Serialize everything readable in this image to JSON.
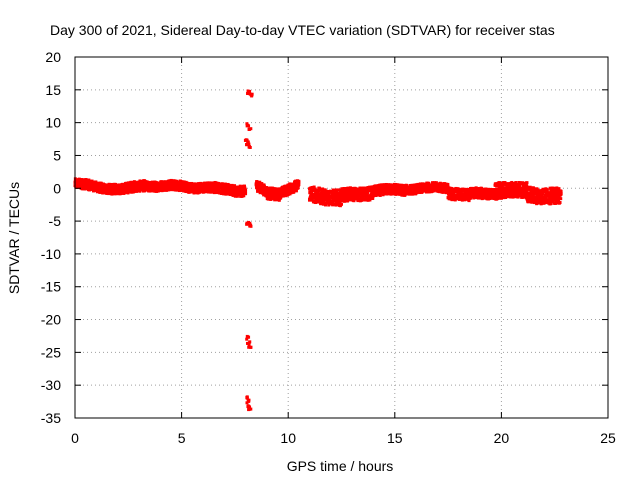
{
  "chart_data": {
    "type": "scatter",
    "title": "Day 300 of 2021, Sidereal Day-to-day VTEC variation (SDTVAR) for receiver stas",
    "xlabel": "GPS time / hours",
    "ylabel": "SDTVAR / TECUs",
    "xlim": [
      0,
      25
    ],
    "ylim": [
      -35,
      20
    ],
    "xticks": [
      0,
      5,
      10,
      15,
      20,
      25
    ],
    "yticks": [
      20,
      15,
      10,
      5,
      0,
      -5,
      -10,
      -15,
      -20,
      -25,
      -30,
      -35
    ],
    "grid": true,
    "series_color": "#ff0000",
    "band_segments": [
      {
        "x0": 0.0,
        "x1": 1.0,
        "y_start": 0.7,
        "y_end": 0.2,
        "thickness": 1.5
      },
      {
        "x0": 1.0,
        "x1": 2.3,
        "y_start": 0.2,
        "y_end": -0.2,
        "thickness": 1.5
      },
      {
        "x0": 2.3,
        "x1": 3.3,
        "y_start": -0.2,
        "y_end": 0.5,
        "thickness": 1.6
      },
      {
        "x0": 3.3,
        "x1": 5.0,
        "y_start": 0.4,
        "y_end": 0.3,
        "thickness": 1.5
      },
      {
        "x0": 5.0,
        "x1": 6.5,
        "y_start": 0.3,
        "y_end": 0.0,
        "thickness": 1.5
      },
      {
        "x0": 6.5,
        "x1": 8.0,
        "y_start": 0.0,
        "y_end": -0.4,
        "thickness": 1.6
      },
      {
        "x0": 8.5,
        "x1": 9.0,
        "y_start": 0.3,
        "y_end": -0.6,
        "thickness": 1.6
      },
      {
        "x0": 9.0,
        "x1": 9.6,
        "y_start": -0.8,
        "y_end": -0.8,
        "thickness": 1.8
      },
      {
        "x0": 9.6,
        "x1": 10.5,
        "y_start": -0.6,
        "y_end": 0.4,
        "thickness": 1.6
      },
      {
        "x0": 11.0,
        "x1": 12.5,
        "y_start": -0.8,
        "y_end": -1.6,
        "thickness": 2.4
      },
      {
        "x0": 12.5,
        "x1": 14.0,
        "y_start": -1.2,
        "y_end": -0.6,
        "thickness": 2.0
      },
      {
        "x0": 14.0,
        "x1": 15.5,
        "y_start": -0.4,
        "y_end": -0.2,
        "thickness": 1.6
      },
      {
        "x0": 15.5,
        "x1": 17.5,
        "y_start": -0.1,
        "y_end": 0.1,
        "thickness": 1.4
      },
      {
        "x0": 17.5,
        "x1": 18.5,
        "y_start": -0.6,
        "y_end": -1.1,
        "thickness": 1.8
      },
      {
        "x0": 18.5,
        "x1": 19.8,
        "y_start": -0.9,
        "y_end": -0.8,
        "thickness": 1.6
      },
      {
        "x0": 19.8,
        "x1": 21.2,
        "y_start": -0.6,
        "y_end": -0.8,
        "thickness": 1.6
      },
      {
        "x0": 21.2,
        "x1": 22.8,
        "y_start": -0.9,
        "y_end": -1.3,
        "thickness": 2.4
      }
    ],
    "upper_band": {
      "x0": 19.7,
      "x1": 21.2,
      "y": 0.6,
      "thickness": 0.6
    },
    "spike_points": [
      {
        "x": 8.15,
        "y": 14.6
      },
      {
        "x": 8.25,
        "y": 14.3
      },
      {
        "x": 8.1,
        "y": 9.6
      },
      {
        "x": 8.2,
        "y": 9.2
      },
      {
        "x": 8.05,
        "y": 7.3
      },
      {
        "x": 8.1,
        "y": 6.8
      },
      {
        "x": 8.2,
        "y": 6.3
      },
      {
        "x": 8.1,
        "y": -5.3
      },
      {
        "x": 8.2,
        "y": -5.6
      },
      {
        "x": 8.1,
        "y": -22.8
      },
      {
        "x": 8.15,
        "y": -23.5
      },
      {
        "x": 8.2,
        "y": -24.2
      },
      {
        "x": 8.05,
        "y": -31.8
      },
      {
        "x": 8.1,
        "y": -32.5
      },
      {
        "x": 8.15,
        "y": -33.2
      },
      {
        "x": 8.2,
        "y": -33.8
      }
    ]
  }
}
